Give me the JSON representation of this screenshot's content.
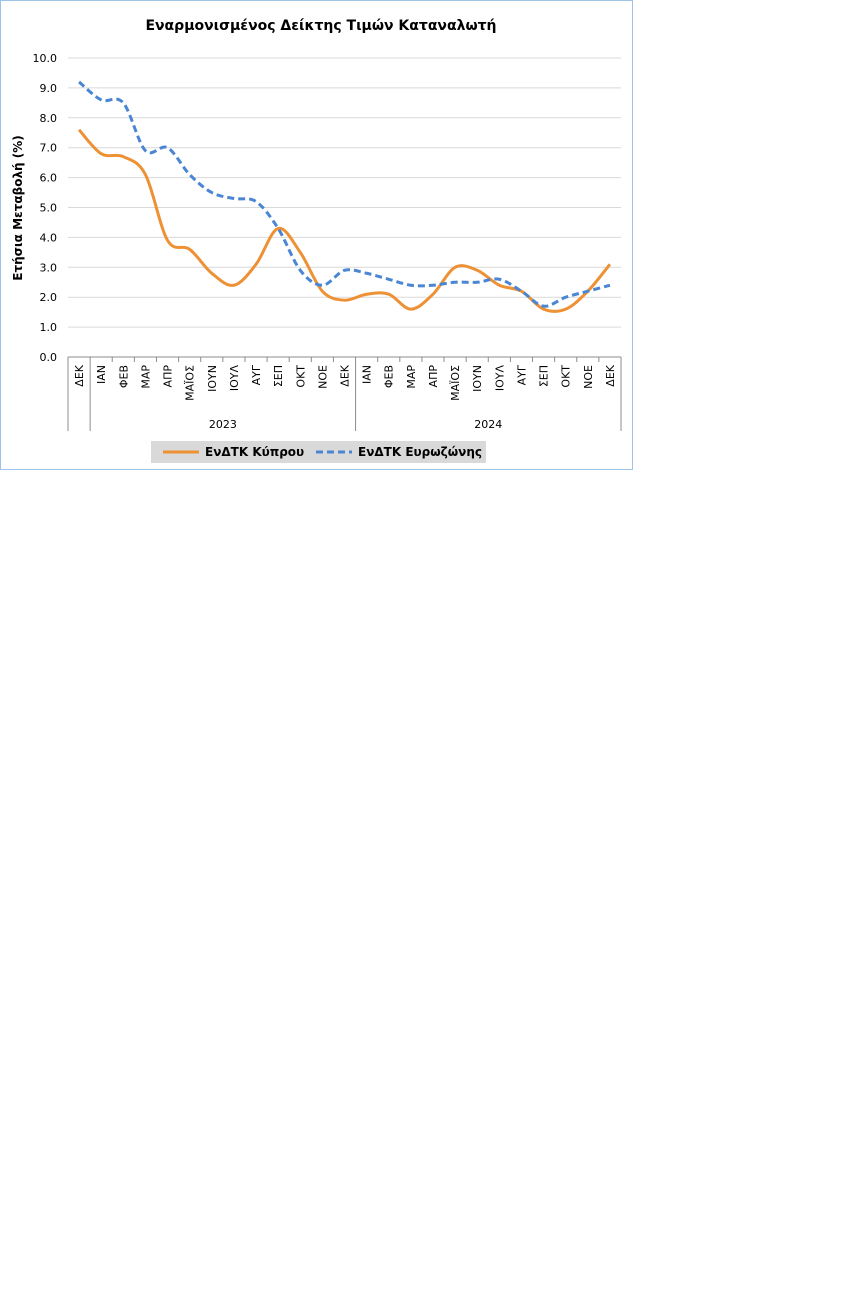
{
  "chart_data": {
    "type": "line",
    "title": "Εναρμονισμένος Δείκτης Τιμών Καταναλωτή",
    "xlabel": "",
    "ylabel": "Ετήσια Μεταβολή (%)",
    "ylim": [
      0,
      10
    ],
    "yticks": [
      "0.0",
      "1.0",
      "2.0",
      "3.0",
      "4.0",
      "5.0",
      "6.0",
      "7.0",
      "8.0",
      "9.0",
      "10.0"
    ],
    "grid": true,
    "legend_position": "bottom",
    "categories": [
      "ΔΕΚ",
      "ΙΑΝ",
      "ΦΕΒ",
      "ΜΑΡ",
      "ΑΠΡ",
      "ΜΑΪΟΣ",
      "ΙΟΥΝ",
      "ΙΟΥΛ",
      "ΑΥΓ",
      "ΣΕΠ",
      "ΟΚΤ",
      "ΝΟΕ",
      "ΔΕΚ",
      "ΙΑΝ",
      "ΦΕΒ",
      "ΜΑΡ",
      "ΑΠΡ",
      "ΜΑΪΟΣ",
      "ΙΟΥΝ",
      "ΙΟΥΛ",
      "ΑΥΓ",
      "ΣΕΠ",
      "ΟΚΤ",
      "ΝΟΕ",
      "ΔΕΚ"
    ],
    "groups": [
      {
        "label": "",
        "start": 0,
        "end": 0
      },
      {
        "label": "2023",
        "start": 1,
        "end": 12
      },
      {
        "label": "2024",
        "start": 13,
        "end": 24
      }
    ],
    "series": [
      {
        "name": "ΕνΔΤΚ Κύπρου",
        "color": "#ed9134",
        "style": "solid",
        "values": [
          7.6,
          6.8,
          6.7,
          6.1,
          3.9,
          3.6,
          2.8,
          2.4,
          3.1,
          4.3,
          3.5,
          2.2,
          1.9,
          2.1,
          2.1,
          1.6,
          2.1,
          3.0,
          2.9,
          2.4,
          2.2,
          1.6,
          1.6,
          2.2,
          3.1
        ]
      },
      {
        "name": "ΕνΔΤΚ Ευρωζώνης",
        "color": "#4a86d4",
        "style": "dashed",
        "values": [
          9.2,
          8.6,
          8.5,
          6.9,
          7.0,
          6.1,
          5.5,
          5.3,
          5.2,
          4.3,
          2.9,
          2.4,
          2.9,
          2.8,
          2.6,
          2.4,
          2.4,
          2.5,
          2.5,
          2.6,
          2.2,
          1.7,
          2.0,
          2.2,
          2.4
        ]
      }
    ]
  }
}
